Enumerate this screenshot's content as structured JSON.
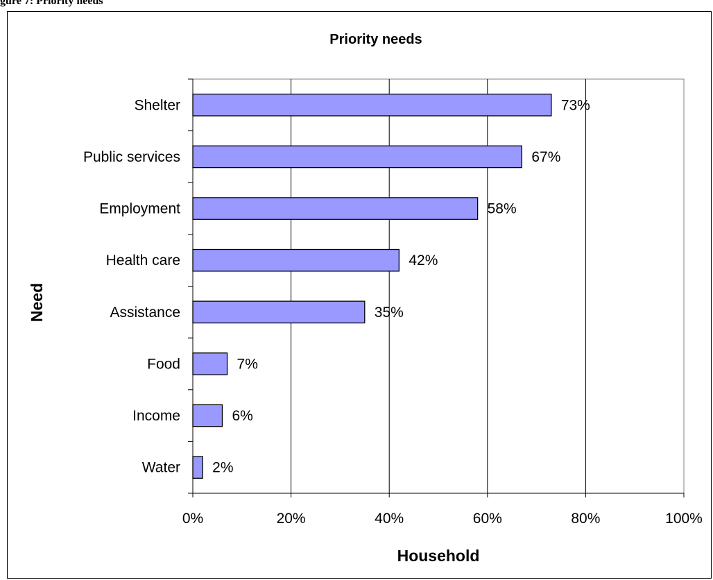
{
  "figure_caption": "gure 7: Priority needs",
  "chart_data": {
    "type": "bar",
    "orientation": "horizontal",
    "title": "Priority needs",
    "xlabel": "Household",
    "ylabel": "Need",
    "categories": [
      "Shelter",
      "Public services",
      "Employment",
      "Health care",
      "Assistance",
      "Food",
      "Income",
      "Water"
    ],
    "values": [
      73,
      67,
      58,
      42,
      35,
      7,
      6,
      2
    ],
    "data_labels": [
      "73%",
      "67%",
      "58%",
      "42%",
      "35%",
      "7%",
      "6%",
      "2%"
    ],
    "xlim": [
      0,
      100
    ],
    "x_ticks": [
      0,
      20,
      40,
      60,
      80,
      100
    ],
    "x_tick_labels": [
      "0%",
      "20%",
      "40%",
      "60%",
      "80%",
      "100%"
    ],
    "grid": "vertical major gridlines",
    "legend": "none",
    "bar_color": "#9999ff",
    "bar_edge_color": "#000000"
  }
}
